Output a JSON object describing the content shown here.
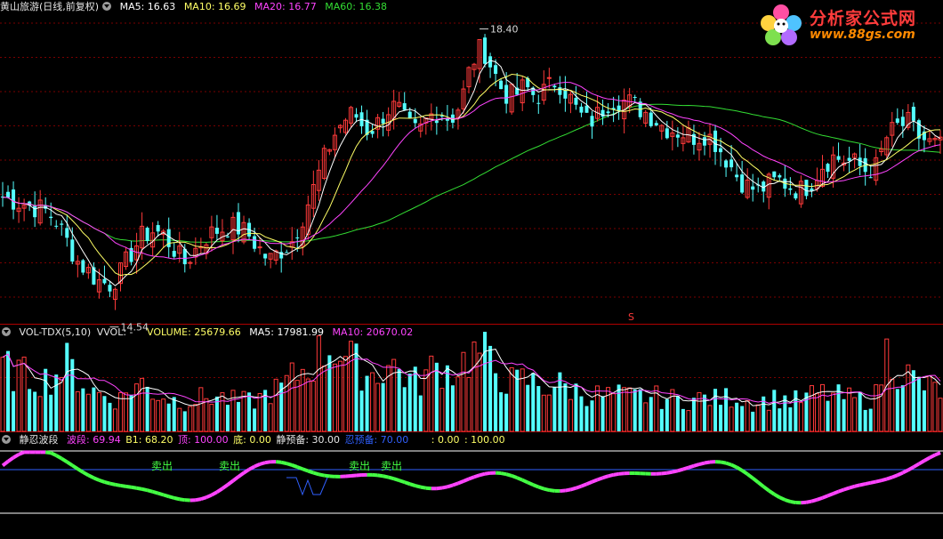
{
  "colors": {
    "bg": "#000000",
    "up": "#ff3a3a",
    "down": "#54ffff",
    "white": "#ffffff",
    "ma5": "#ffffff",
    "ma10": "#ffff66",
    "ma20": "#ff44ff",
    "ma60": "#33dd33",
    "grid": "#7a0000",
    "sep": "#b00000",
    "blue": "#3060ff",
    "green": "#44ff44",
    "magenta": "#ff44ff",
    "ylabel": "#d7d7d7"
  },
  "price_panel": {
    "title": "黄山旅游(日线,前复权)",
    "ma5": "MA5: 16.63",
    "ma10": "MA10: 16.69",
    "ma20": "MA20: 16.77",
    "ma60": "MA60: 16.38",
    "high_label": "18.40",
    "low_label": "14.54",
    "marker": "S"
  },
  "volume_panel": {
    "name": "VOL-TDX(5,10)",
    "vvol": "VVOL: -",
    "volume": "VOLUME: 25679.66",
    "ma5": "MA5: 17981.99",
    "ma10": "MA10: 20670.02"
  },
  "indicator_panel": {
    "name": "静忍波段",
    "wave": "波段: 69.94",
    "b1": "B1: 68.20",
    "top": "顶: 100.00",
    "bottom": "底: 0.00",
    "static_pre": "静预备: 30.00",
    "patience_pre": "忍预备: 70.00",
    "extra1": ": 0.00",
    "extra2": ": 100.00",
    "sell_label": "卖出"
  },
  "logo": {
    "title": "分析家公式网",
    "url": "www.88gs.com"
  },
  "chart_data": {
    "type": "candlestick",
    "price_high": 18.4,
    "price_low": 14.54,
    "ma_values": {
      "MA5": 16.63,
      "MA10": 16.69,
      "MA20": 16.77,
      "MA60": 16.38
    },
    "volume_last": 25679.66,
    "volume_ma5": 17981.99,
    "volume_ma10": 20670.02,
    "indicator": {
      "wave": 69.94,
      "B1": 68.2,
      "top": 100.0,
      "bottom": 0.0,
      "static_pre": 30.0,
      "patience_pre": 70.0
    },
    "price_path": [
      16.05,
      16.0,
      15.95,
      15.9,
      15.85,
      15.7,
      15.4,
      15.1,
      14.95,
      14.8,
      14.75,
      14.9,
      15.2,
      15.45,
      15.55,
      15.5,
      15.3,
      15.05,
      15.25,
      15.45,
      15.55,
      15.6,
      15.6,
      15.5,
      15.3,
      15.1,
      15.25,
      15.35,
      15.7,
      16.1,
      16.55,
      16.95,
      17.2,
      17.3,
      17.05,
      17.1,
      17.35,
      17.4,
      17.1,
      17.0,
      17.25,
      17.35,
      17.2,
      17.45,
      18.05,
      18.3,
      17.95,
      17.6,
      17.55,
      17.7,
      17.55,
      17.65,
      17.8,
      17.6,
      17.3,
      17.15,
      17.3,
      17.5,
      17.5,
      17.45,
      17.35,
      17.25,
      17.1,
      17.05,
      17.0,
      16.95,
      17.0,
      16.85,
      16.6,
      16.35,
      16.2,
      16.15,
      16.25,
      16.3,
      16.2,
      16.15,
      16.3,
      16.55,
      16.65,
      16.6,
      16.55,
      16.45,
      16.5,
      16.95,
      17.1,
      17.15,
      16.95,
      16.85,
      16.8
    ],
    "volume_path": [
      32,
      30,
      28,
      27,
      26,
      29,
      34,
      28,
      22,
      19,
      17,
      16,
      22,
      24,
      20,
      18,
      16,
      15,
      16,
      17,
      18,
      16,
      15,
      15,
      16,
      20,
      21,
      26,
      30,
      34,
      40,
      44,
      38,
      34,
      30,
      28,
      34,
      32,
      27,
      24,
      30,
      33,
      30,
      34,
      38,
      40,
      32,
      27,
      24,
      26,
      24,
      22,
      24,
      22,
      20,
      19,
      18,
      18,
      18,
      17,
      18,
      17,
      17,
      16,
      16,
      16,
      17,
      16,
      17,
      18,
      15,
      15,
      16,
      17,
      15,
      16,
      18,
      19,
      18,
      17,
      16,
      16,
      18,
      40,
      32,
      28,
      24,
      22,
      20
    ]
  }
}
